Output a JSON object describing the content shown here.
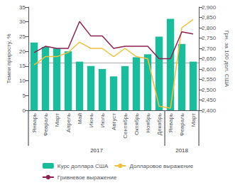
{
  "chart_data": {
    "type": "bar",
    "categories": [
      "Январь",
      "Февраль",
      "Март",
      "Апрель",
      "Май",
      "Июнь",
      "Июль",
      "Август",
      "Сентябрь",
      "Октябрь",
      "Ноябрь",
      "Декабрь",
      "Январь",
      "Февраль",
      "Март"
    ],
    "series": [
      {
        "name": "Курс доллара США",
        "type": "bar",
        "color": "#1abc9c",
        "values": [
          23,
          21.5,
          21,
          20,
          16.5,
          15,
          14,
          11.5,
          15,
          18,
          19,
          25,
          31,
          22.5,
          16.5
        ]
      },
      {
        "name": "Долларовое выражение",
        "type": "line",
        "color": "#f0c040",
        "axis": "y2",
        "values": [
          2620,
          2660,
          2660,
          2680,
          2730,
          2700,
          2700,
          2660,
          2700,
          2660,
          2650,
          2420,
          2410,
          2800,
          2840
        ]
      },
      {
        "name": "Гривневое выражение",
        "type": "line",
        "color": "#8b2252",
        "axis": "y2",
        "values": [
          2680,
          2710,
          2700,
          2700,
          2830,
          2760,
          2760,
          2700,
          2710,
          2710,
          2710,
          2650,
          2650,
          2780,
          2770
        ]
      }
    ],
    "ylabel": "Темпи приросту, %",
    "y2label": "Грн. за 100 дол. США",
    "ylim": [
      0,
      35
    ],
    "yticks": [
      0,
      5,
      10,
      15,
      20,
      25,
      30,
      35
    ],
    "y2lim": [
      2400,
      2900
    ],
    "y2ticks": [
      2400,
      2450,
      2500,
      2550,
      2600,
      2650,
      2700,
      2750,
      2800,
      2850,
      2900
    ],
    "reference_line": 16,
    "year_groups": [
      {
        "label": "2017",
        "count": 12
      },
      {
        "label": "2018",
        "count": 3
      }
    ],
    "grid": false,
    "legend": "bottom"
  }
}
